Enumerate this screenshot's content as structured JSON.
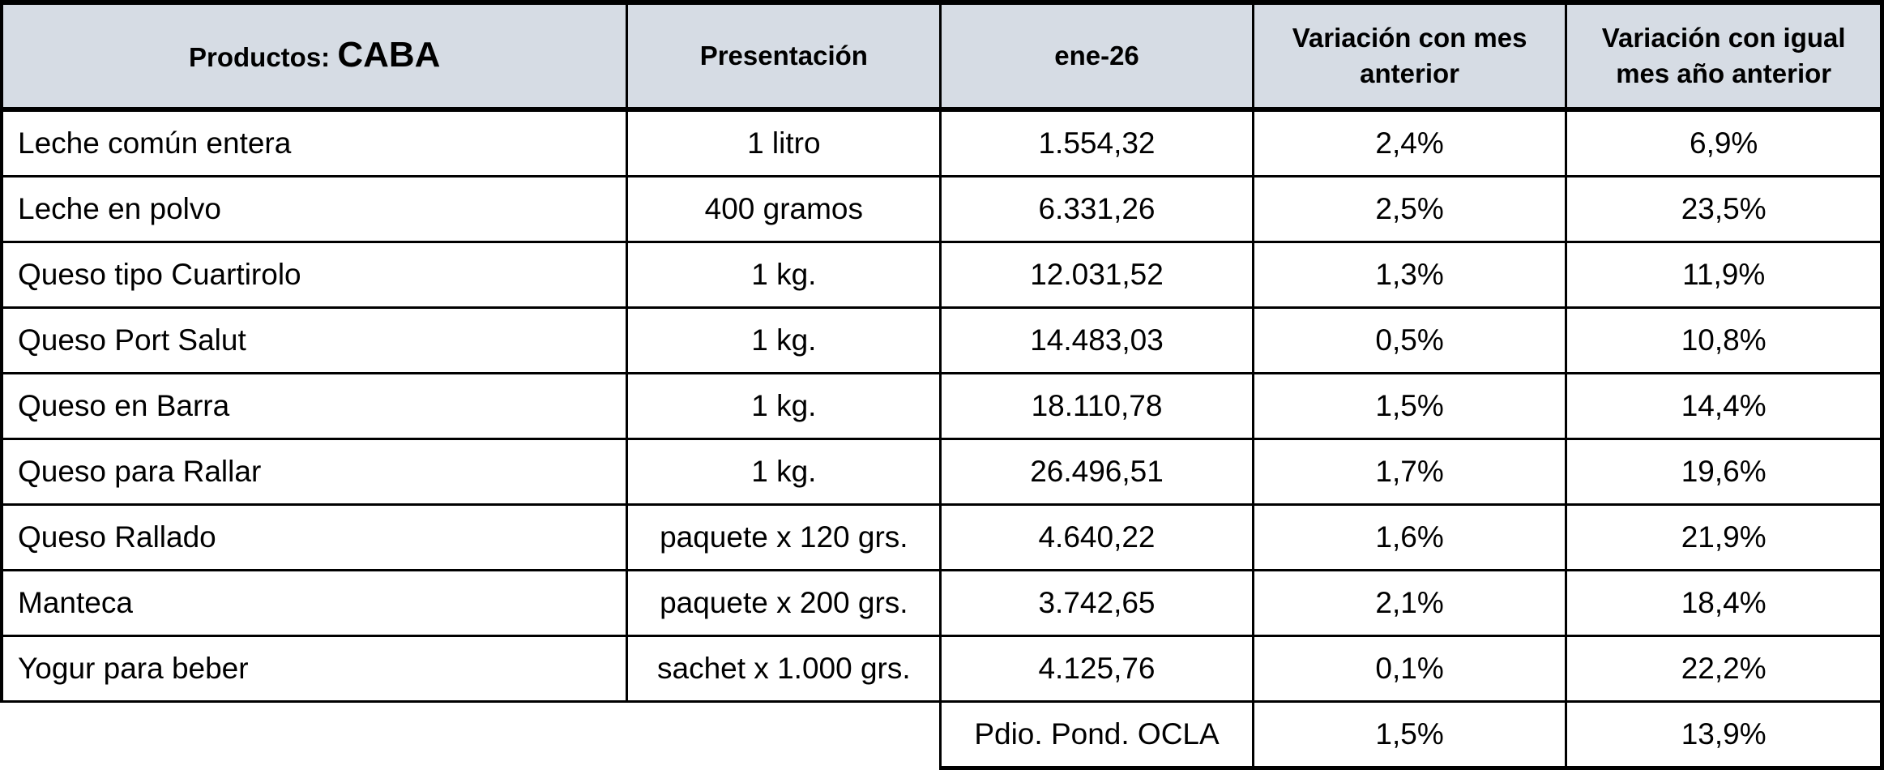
{
  "header": {
    "products_prefix": "Productos:",
    "products_region": "CABA",
    "presentation": "Presentación",
    "month": "ene-26",
    "var_prev_month": "Variación con mes anterior",
    "var_prev_month_line1": "Variación con mes",
    "var_prev_month_line2": "anterior",
    "var_prev_year_line1": "Variación con igual",
    "var_prev_year_line2": "mes año anterior"
  },
  "rows": [
    {
      "product": "Leche común entera",
      "presentation": "1 litro",
      "price": "1.554,32",
      "var_month": "2,4%",
      "var_year": "6,9%"
    },
    {
      "product": "Leche en polvo",
      "presentation": "400 gramos",
      "price": "6.331,26",
      "var_month": "2,5%",
      "var_year": "23,5%"
    },
    {
      "product": "Queso tipo Cuartirolo",
      "presentation": "1 kg.",
      "price": "12.031,52",
      "var_month": "1,3%",
      "var_year": "11,9%"
    },
    {
      "product": "Queso Port Salut",
      "presentation": "1 kg.",
      "price": "14.483,03",
      "var_month": "0,5%",
      "var_year": "10,8%"
    },
    {
      "product": "Queso en Barra",
      "presentation": "1 kg.",
      "price": "18.110,78",
      "var_month": "1,5%",
      "var_year": "14,4%"
    },
    {
      "product": "Queso para Rallar",
      "presentation": "1 kg.",
      "price": "26.496,51",
      "var_month": "1,7%",
      "var_year": "19,6%"
    },
    {
      "product": "Queso Rallado",
      "presentation": "paquete x 120 grs.",
      "price": "4.640,22",
      "var_month": "1,6%",
      "var_year": "21,9%"
    },
    {
      "product": "Manteca",
      "presentation": "paquete x 200 grs.",
      "price": "3.742,65",
      "var_month": "2,1%",
      "var_year": "18,4%"
    },
    {
      "product": "Yogur para beber",
      "presentation": "sachet x 1.000 grs.",
      "price": "4.125,76",
      "var_month": "0,1%",
      "var_year": "22,2%"
    }
  ],
  "footer": {
    "label": "Pdio. Pond. OCLA",
    "var_month": "1,5%",
    "var_year": "13,9%"
  },
  "colors": {
    "header_bg": "#d6dce4",
    "border": "#000000"
  }
}
